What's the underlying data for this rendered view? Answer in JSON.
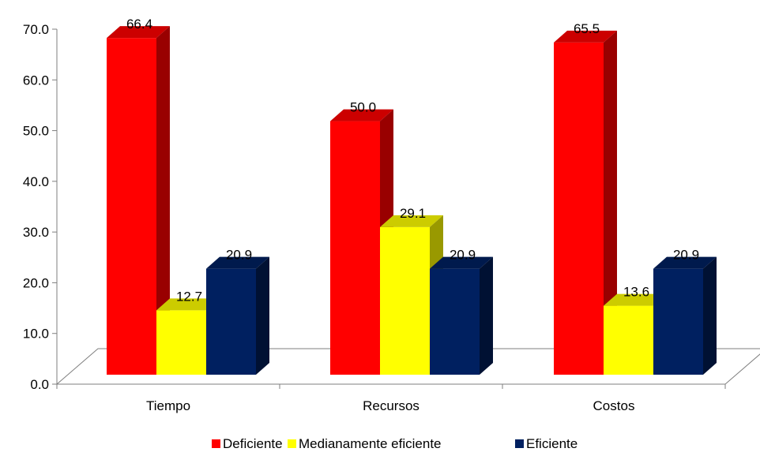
{
  "chart_data": {
    "type": "bar",
    "categories": [
      "Tiempo",
      "Recursos",
      "Costos"
    ],
    "series": [
      {
        "name": "Deficiente",
        "values": [
          66.4,
          50.0,
          65.5
        ]
      },
      {
        "name": "Medianamente eficiente",
        "values": [
          12.7,
          29.1,
          13.6
        ]
      },
      {
        "name": "Eficiente",
        "values": [
          20.9,
          20.9,
          20.9
        ]
      }
    ],
    "data_labels": [
      [
        "66.4",
        "50.0",
        "65.5"
      ],
      [
        "12.7",
        "29.1",
        "13.6"
      ],
      [
        "20.9",
        "20.9",
        "20.9"
      ]
    ],
    "y_ticks": [
      "0.0",
      "10.0",
      "20.0",
      "30.0",
      "40.0",
      "50.0",
      "60.0",
      "70.0"
    ],
    "ylim": [
      0,
      70
    ],
    "grid": false,
    "legend_position": "bottom",
    "style": "3d-columns"
  },
  "colors": {
    "series": [
      {
        "front": "#ff0000",
        "top": "#cc0000",
        "side": "#990000"
      },
      {
        "front": "#ffff00",
        "top": "#cccc00",
        "side": "#999900"
      },
      {
        "front": "#002060",
        "top": "#001a4d",
        "side": "#001133"
      }
    ],
    "axis": "#7f7f7f"
  }
}
